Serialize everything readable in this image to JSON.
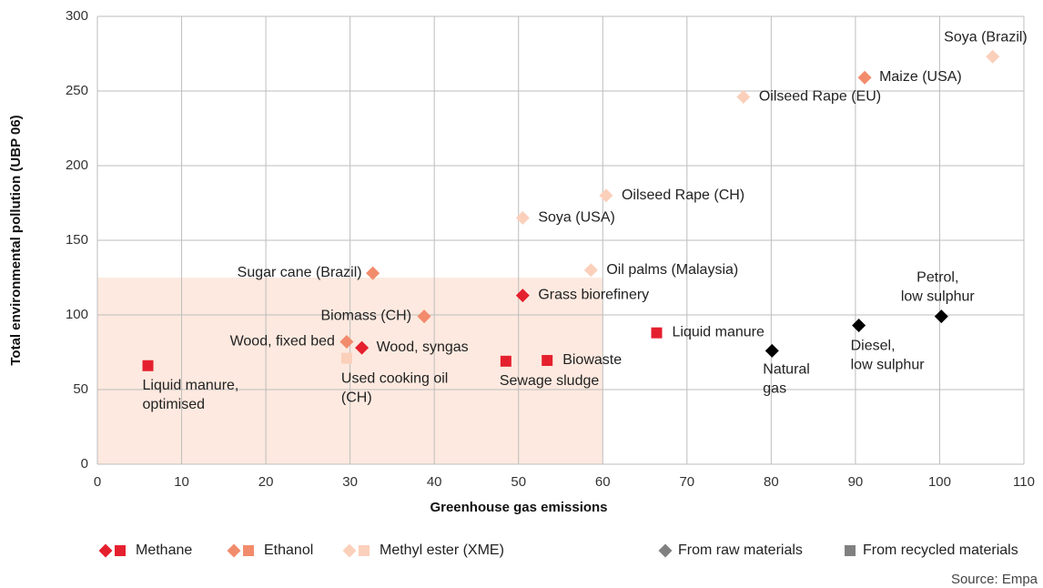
{
  "chart_data": {
    "type": "scatter",
    "xlabel": "Greenhouse gas emissions",
    "ylabel": "Total environmental pollution (UBP 06)",
    "source": "Source: Empa",
    "xlim": [
      0,
      110
    ],
    "xticks": [
      0,
      10,
      20,
      30,
      40,
      50,
      60,
      70,
      80,
      90,
      100,
      110
    ],
    "ylim": [
      0,
      300
    ],
    "yticks": [
      0,
      50,
      100,
      150,
      200,
      250,
      300
    ],
    "grid": true,
    "highlight": {
      "xlim": [
        0,
        60
      ],
      "ylim": [
        0,
        125
      ],
      "color": "#fde9df"
    },
    "series": [
      {
        "name": "Methane",
        "color": "#e5202e",
        "x": [
          6,
          31.4,
          50.5,
          48.5,
          53.4,
          66.4
        ],
        "values": [
          66,
          78,
          113,
          69,
          69.5,
          88
        ],
        "markers": [
          "square",
          "diamond",
          "diamond",
          "square",
          "square",
          "square"
        ],
        "labels": [
          [
            "Liquid manure,",
            "optimised"
          ],
          [
            "Wood, syngas"
          ],
          [
            "Grass biorefinery"
          ],
          [
            "Sewage sludge"
          ],
          [
            "Biowaste"
          ],
          [
            "Liquid manure"
          ]
        ]
      },
      {
        "name": "Ethanol",
        "color": "#f28b6c",
        "x": [
          32.7,
          38.8,
          29.6,
          91.1
        ],
        "values": [
          128,
          99,
          82,
          259
        ],
        "markers": [
          "diamond",
          "diamond",
          "diamond",
          "diamond"
        ],
        "labels": [
          [
            "Sugar cane (Brazil)"
          ],
          [
            "Biomass (CH)"
          ],
          [
            "Wood, fixed bed"
          ],
          [
            "Maize (USA)"
          ]
        ]
      },
      {
        "name": "Methyl ester (XME)",
        "color": "#fbd0bb",
        "x": [
          106.3,
          76.7,
          60.4,
          50.5,
          58.6,
          29.6
        ],
        "values": [
          273,
          246,
          180,
          165,
          130,
          71
        ],
        "markers": [
          "diamond",
          "diamond",
          "diamond",
          "diamond",
          "diamond",
          "square"
        ],
        "labels": [
          [
            "Soya (Brazil)"
          ],
          [
            "Oilseed Rape (EU)"
          ],
          [
            "Oilseed Rape (CH)"
          ],
          [
            "Soya (USA)"
          ],
          [
            "Oil palms (Malaysia)"
          ],
          [
            "Used cooking oil",
            "(CH)"
          ]
        ]
      },
      {
        "color": "#000000",
        "x": [
          80.1,
          90.4,
          100.2
        ],
        "values": [
          76,
          93,
          99
        ],
        "markers": [
          "diamond",
          "diamond",
          "diamond"
        ],
        "labels": [
          [
            "Natural",
            "gas"
          ],
          [
            "Diesel,",
            "low sulphur"
          ],
          [
            "Petrol,",
            "low sulphur"
          ]
        ]
      }
    ],
    "marker_legend": [
      {
        "marker": "diamond",
        "label": "From raw materials",
        "color": "#808080"
      },
      {
        "marker": "square",
        "label": "From recycled materials",
        "color": "#808080"
      }
    ]
  }
}
